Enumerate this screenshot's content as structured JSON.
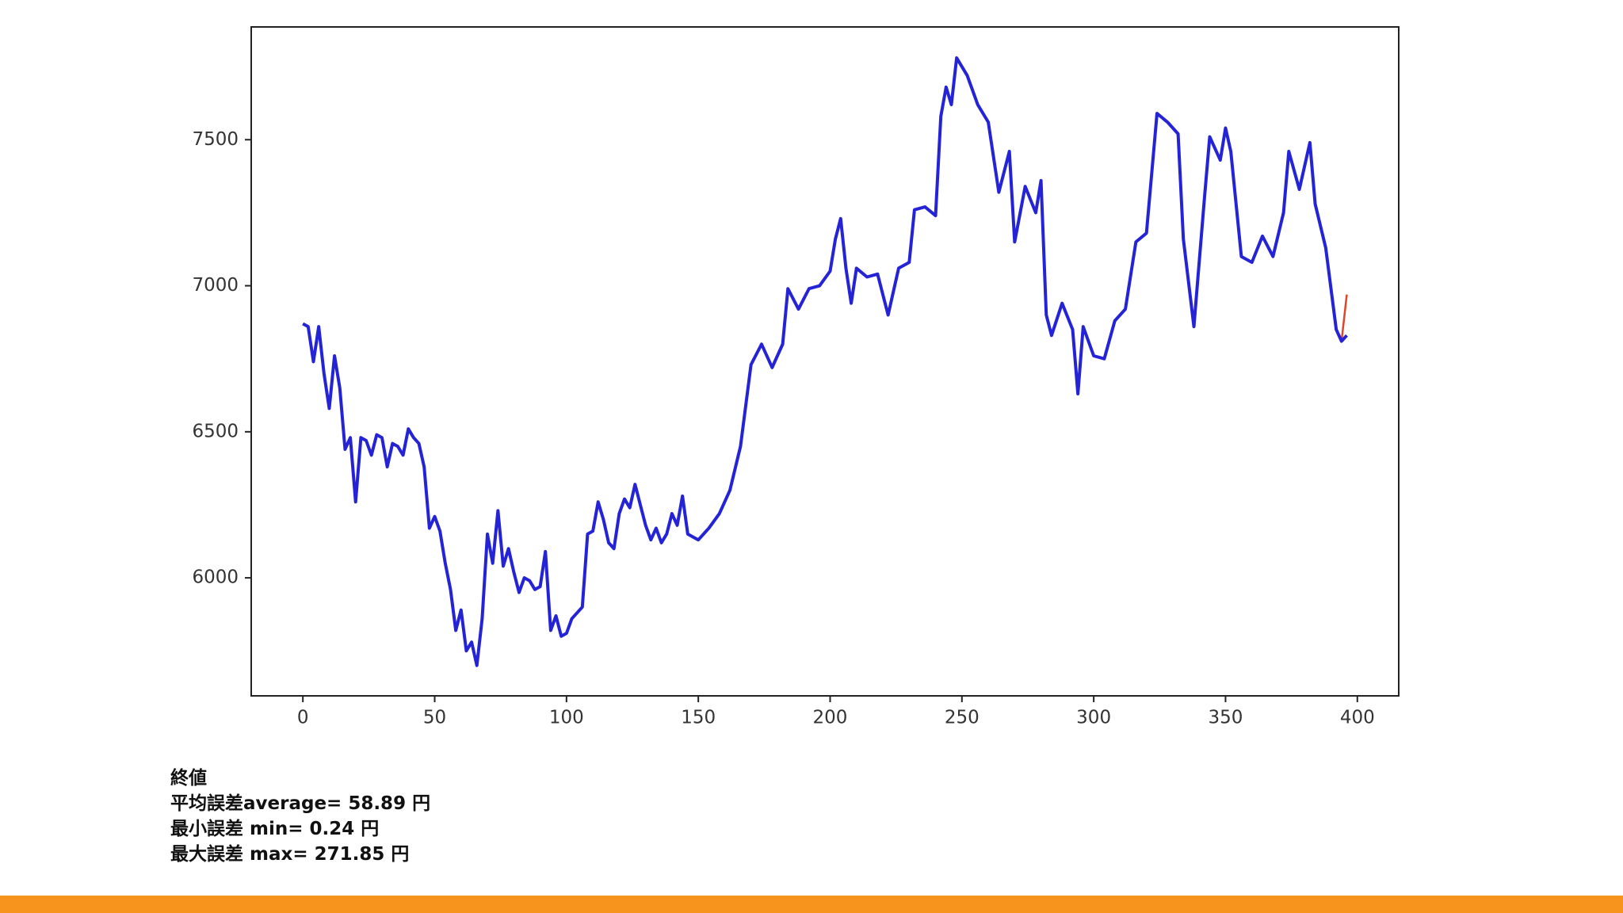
{
  "chart_data": {
    "type": "line",
    "x": [
      0,
      2,
      4,
      6,
      8,
      10,
      12,
      14,
      16,
      18,
      20,
      22,
      24,
      26,
      28,
      30,
      32,
      34,
      36,
      38,
      40,
      42,
      44,
      46,
      48,
      50,
      52,
      54,
      56,
      58,
      60,
      62,
      64,
      66,
      68,
      70,
      72,
      74,
      76,
      78,
      80,
      82,
      84,
      86,
      88,
      90,
      92,
      94,
      96,
      98,
      100,
      102,
      104,
      106,
      108,
      110,
      112,
      114,
      116,
      118,
      120,
      122,
      124,
      126,
      128,
      130,
      132,
      134,
      136,
      138,
      140,
      142,
      144,
      146,
      150,
      154,
      158,
      162,
      166,
      170,
      174,
      178,
      182,
      184,
      188,
      192,
      196,
      200,
      202,
      204,
      206,
      208,
      210,
      214,
      218,
      222,
      226,
      230,
      232,
      236,
      240,
      242,
      244,
      246,
      248,
      252,
      256,
      260,
      264,
      268,
      270,
      274,
      278,
      280,
      282,
      284,
      288,
      292,
      294,
      296,
      300,
      304,
      308,
      312,
      316,
      320,
      324,
      328,
      332,
      334,
      338,
      342,
      344,
      348,
      350,
      352,
      356,
      360,
      364,
      368,
      372,
      374,
      378,
      382,
      384,
      388,
      392,
      394,
      396
    ],
    "series": [
      {
        "color": "#e0442a",
        "values": [
          6870,
          6860,
          6740,
          6860,
          6700,
          6580,
          6760,
          6650,
          6440,
          6480,
          6260,
          6480,
          6470,
          6420,
          6490,
          6480,
          6380,
          6460,
          6450,
          6420,
          6510,
          6480,
          6460,
          6380,
          6170,
          6210,
          6160,
          6050,
          5960,
          5820,
          5890,
          5750,
          5780,
          5700,
          5860,
          6150,
          6050,
          6230,
          6040,
          6100,
          6020,
          5950,
          6000,
          5990,
          5960,
          5970,
          6090,
          5820,
          5870,
          5800,
          5810,
          5860,
          5880,
          5900,
          6150,
          6160,
          6260,
          6200,
          6120,
          6100,
          6220,
          6270,
          6240,
          6320,
          6250,
          6180,
          6130,
          6170,
          6120,
          6150,
          6220,
          6180,
          6280,
          6150,
          6130,
          6170,
          6220,
          6300,
          6450,
          6730,
          6800,
          6720,
          6800,
          6990,
          6920,
          6990,
          7000,
          7050,
          7160,
          7230,
          7060,
          6940,
          7060,
          7030,
          7040,
          6900,
          7060,
          7080,
          7260,
          7270,
          7240,
          7580,
          7680,
          7620,
          7780,
          7720,
          7620,
          7560,
          7320,
          7460,
          7150,
          7340,
          7250,
          7360,
          6900,
          6830,
          6940,
          6850,
          6630,
          6860,
          6760,
          6750,
          6880,
          6920,
          7150,
          7180,
          7590,
          7560,
          7520,
          7160,
          6860,
          7300,
          7510,
          7430,
          7540,
          7460,
          7100,
          7080,
          7170,
          7100,
          7250,
          7460,
          7330,
          7490,
          7280,
          7130,
          6850,
          6810,
          6970
        ]
      },
      {
        "color": "#2424d6",
        "values": [
          6870,
          6860,
          6740,
          6860,
          6700,
          6580,
          6760,
          6650,
          6440,
          6480,
          6260,
          6480,
          6470,
          6420,
          6490,
          6480,
          6380,
          6460,
          6450,
          6420,
          6510,
          6480,
          6460,
          6380,
          6170,
          6210,
          6160,
          6050,
          5960,
          5820,
          5890,
          5750,
          5780,
          5700,
          5860,
          6150,
          6050,
          6230,
          6040,
          6100,
          6020,
          5950,
          6000,
          5990,
          5960,
          5970,
          6090,
          5820,
          5870,
          5800,
          5810,
          5860,
          5880,
          5900,
          6150,
          6160,
          6260,
          6200,
          6120,
          6100,
          6220,
          6270,
          6240,
          6320,
          6250,
          6180,
          6130,
          6170,
          6120,
          6150,
          6220,
          6180,
          6280,
          6150,
          6130,
          6170,
          6220,
          6300,
          6450,
          6730,
          6800,
          6720,
          6800,
          6990,
          6920,
          6990,
          7000,
          7050,
          7160,
          7230,
          7060,
          6940,
          7060,
          7030,
          7040,
          6900,
          7060,
          7080,
          7260,
          7270,
          7240,
          7580,
          7680,
          7620,
          7780,
          7720,
          7620,
          7560,
          7320,
          7460,
          7150,
          7340,
          7250,
          7360,
          6900,
          6830,
          6940,
          6850,
          6630,
          6860,
          6760,
          6750,
          6880,
          6920,
          7150,
          7180,
          7590,
          7560,
          7520,
          7160,
          6860,
          7300,
          7510,
          7430,
          7540,
          7460,
          7100,
          7080,
          7170,
          7100,
          7250,
          7460,
          7330,
          7490,
          7280,
          7130,
          6850,
          6810,
          6830
        ]
      }
    ],
    "xlim": [
      -19.6,
      415.7
    ],
    "ylim": [
      5596,
      7886
    ],
    "xticks": [
      0,
      50,
      100,
      150,
      200,
      250,
      300,
      350,
      400
    ],
    "yticks": [
      6000,
      6500,
      7000,
      7500
    ],
    "annotations": [
      "終値",
      "平均誤差average= 58.89 円",
      "最小誤差 min= 0.24 円",
      "最大誤差 max= 271.85 円"
    ]
  }
}
